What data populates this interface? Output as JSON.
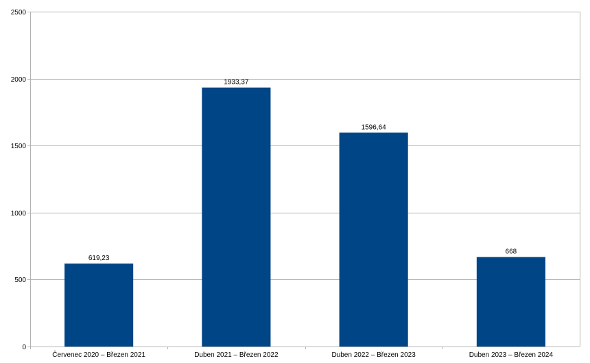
{
  "chart_data": {
    "type": "bar",
    "categories": [
      "Červenec 2020 – Březen 2021",
      "Duben 2021 – Březen 2022",
      "Duben 2022 – Březen 2023",
      "Duben 2023 – Březen 2024"
    ],
    "values": [
      619.23,
      1933.37,
      1596.64,
      668
    ],
    "data_labels": [
      "619,23",
      "1933,37",
      "1596,64",
      "668"
    ],
    "yticks": [
      "0",
      "500",
      "1000",
      "1500",
      "2000",
      "2500"
    ],
    "ylim": [
      0,
      2500
    ],
    "grid": true,
    "legend": "none",
    "title": "",
    "xlabel": "",
    "ylabel": "",
    "colors": {
      "bar": "#004586",
      "grid": "#b3b3b3"
    }
  }
}
